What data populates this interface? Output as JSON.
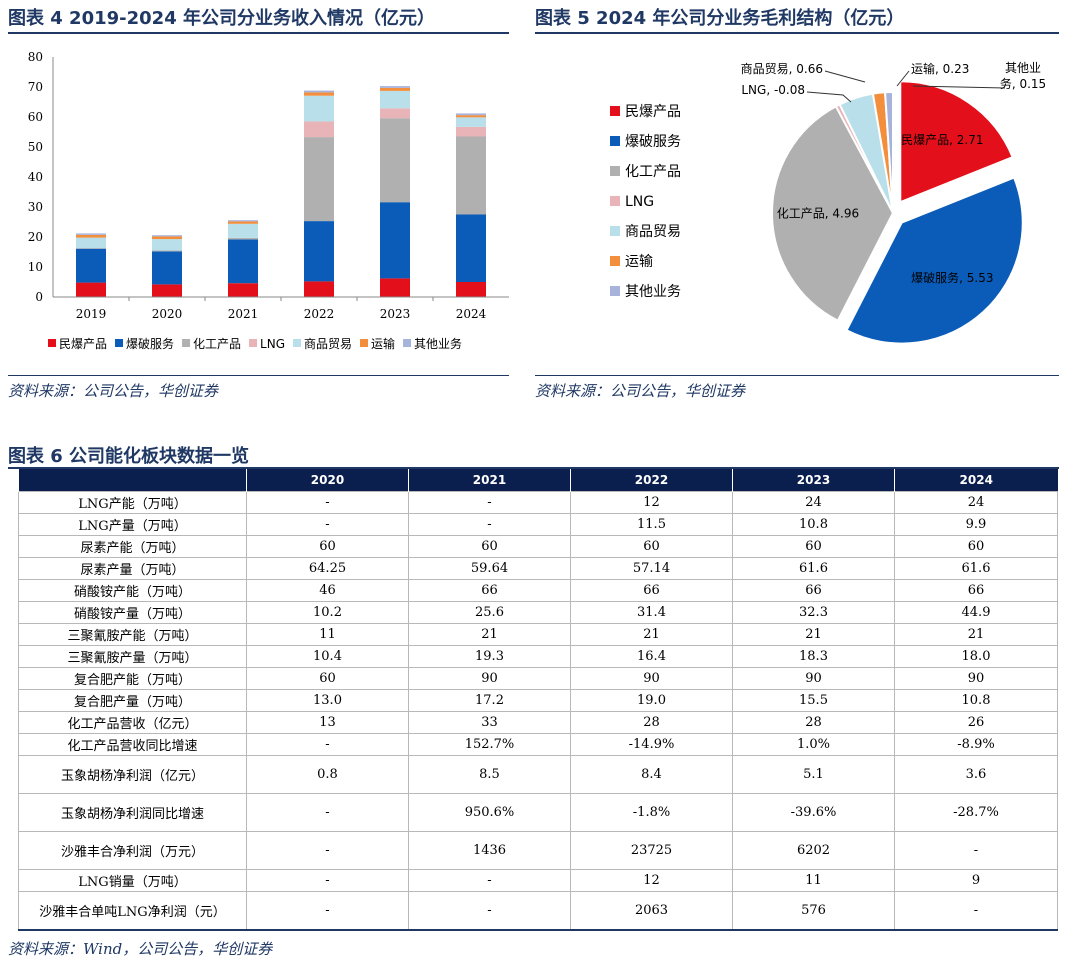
{
  "fig4": {
    "title": "图表 4  2019-2024 年公司分业务收入情况（亿元）",
    "source": "资料来源：公司公告，华创证券"
  },
  "fig5": {
    "title": "图表 5  2024 年公司分业务毛利结构（亿元）",
    "source": "资料来源：公司公告，华创证券"
  },
  "fig6": {
    "title": "图表 6  公司能化板块数据一览",
    "source": "资料来源：Wind，公司公告，华创证券"
  },
  "colors": {
    "民爆产品": "#e3101b",
    "爆破服务": "#0a5cb8",
    "化工产品": "#b0b0b0",
    "LNG": "#e8b4b8",
    "商品贸易": "#b9e0ea",
    "运输": "#f28e3c",
    "其他业务": "#a8b3dc"
  },
  "chart_data": [
    {
      "type": "bar",
      "stacked": true,
      "categories": [
        "2019",
        "2020",
        "2021",
        "2022",
        "2023",
        "2024"
      ],
      "series": [
        {
          "name": "民爆产品",
          "values": [
            4.8,
            4.2,
            4.6,
            5.2,
            6.2,
            5.0
          ]
        },
        {
          "name": "爆破服务",
          "values": [
            11.3,
            11.0,
            14.6,
            20.1,
            25.4,
            22.5
          ]
        },
        {
          "name": "化工产品",
          "values": [
            0.2,
            0.3,
            0.5,
            28.0,
            28.0,
            26.0
          ]
        },
        {
          "name": "LNG",
          "values": [
            0,
            0,
            0,
            5.2,
            3.3,
            3.2
          ]
        },
        {
          "name": "商品贸易",
          "values": [
            3.5,
            3.8,
            4.7,
            8.6,
            5.8,
            3.2
          ]
        },
        {
          "name": "运输",
          "values": [
            0.9,
            0.9,
            0.8,
            1.1,
            1.0,
            0.7
          ]
        },
        {
          "name": "其他业务",
          "values": [
            0.5,
            0.4,
            0.4,
            0.6,
            0.6,
            0.6
          ]
        }
      ],
      "ylim": [
        0,
        80
      ],
      "yticks": [
        "0",
        "10",
        "20",
        "30",
        "40",
        "50",
        "60",
        "70",
        "80"
      ],
      "legend_position": "bottom"
    },
    {
      "type": "pie",
      "slices": [
        {
          "name": "民爆产品",
          "value": 2.71,
          "label": "民爆产品, 2.71",
          "explode": true
        },
        {
          "name": "爆破服务",
          "value": 5.53,
          "label": "爆破服务, 5.53",
          "explode": true
        },
        {
          "name": "化工产品",
          "value": 4.96,
          "label": "化工产品, 4.96",
          "explode": false
        },
        {
          "name": "LNG",
          "value": -0.08,
          "label": "LNG, -0.08",
          "explode": false
        },
        {
          "name": "商品贸易",
          "value": 0.66,
          "label": "商品贸易, 0.66",
          "explode": false
        },
        {
          "name": "运输",
          "value": 0.23,
          "label": "运输, 0.23",
          "explode": false
        },
        {
          "name": "其他业务",
          "value": 0.15,
          "label": "其他业务, 0.15",
          "label_lines": [
            "其他业",
            "务, 0.15"
          ],
          "explode": false
        }
      ],
      "legend_position": "left"
    },
    {
      "type": "table",
      "columns": [
        "",
        "2020",
        "2021",
        "2022",
        "2023",
        "2024"
      ],
      "rows": [
        {
          "label": "LNG产能（万吨）",
          "cells": [
            "-",
            "-",
            "12",
            "24",
            "24"
          ]
        },
        {
          "label": "LNG产量（万吨）",
          "cells": [
            "-",
            "-",
            "11.5",
            "10.8",
            "9.9"
          ]
        },
        {
          "label": "尿素产能（万吨）",
          "cells": [
            "60",
            "60",
            "60",
            "60",
            "60"
          ]
        },
        {
          "label": "尿素产量（万吨）",
          "cells": [
            "64.25",
            "59.64",
            "57.14",
            "61.6",
            "61.6"
          ]
        },
        {
          "label": "硝酸铵产能（万吨）",
          "cells": [
            "46",
            "66",
            "66",
            "66",
            "66"
          ]
        },
        {
          "label": "硝酸铵产量（万吨）",
          "cells": [
            "10.2",
            "25.6",
            "31.4",
            "32.3",
            "44.9"
          ]
        },
        {
          "label": "三聚氰胺产能（万吨）",
          "cells": [
            "11",
            "21",
            "21",
            "21",
            "21"
          ]
        },
        {
          "label": "三聚氰胺产量（万吨）",
          "cells": [
            "10.4",
            "19.3",
            "16.4",
            "18.3",
            "18.0"
          ]
        },
        {
          "label": "复合肥产能（万吨）",
          "cells": [
            "60",
            "90",
            "90",
            "90",
            "90"
          ]
        },
        {
          "label": "复合肥产量（万吨）",
          "cells": [
            "13.0",
            "17.2",
            "19.0",
            "15.5",
            "10.8"
          ]
        },
        {
          "label": "化工产品营收（亿元）",
          "cells": [
            "13",
            "33",
            "28",
            "28",
            "26"
          ]
        },
        {
          "label": "化工产品营收同比增速",
          "cells": [
            "-",
            "152.7%",
            "-14.9%",
            "1.0%",
            "-8.9%"
          ]
        },
        {
          "label": "玉象胡杨净利润（亿元）",
          "cells": [
            "0.8",
            "8.5",
            "8.4",
            "5.1",
            "3.6"
          ],
          "tall": true
        },
        {
          "label": "玉象胡杨净利润同比增速",
          "cells": [
            "-",
            "950.6%",
            "-1.8%",
            "-39.6%",
            "-28.7%"
          ],
          "tall": true
        },
        {
          "label": "沙雅丰合净利润（万元）",
          "cells": [
            "-",
            "1436",
            "23725",
            "6202",
            "-"
          ],
          "tall": true
        },
        {
          "label": "LNG销量（万吨）",
          "cells": [
            "-",
            "-",
            "12",
            "11",
            "9"
          ]
        },
        {
          "label": "沙雅丰合单吨LNG净利润（元）",
          "cells": [
            "-",
            "-",
            "2063",
            "576",
            "-"
          ],
          "tall": true
        }
      ]
    }
  ]
}
